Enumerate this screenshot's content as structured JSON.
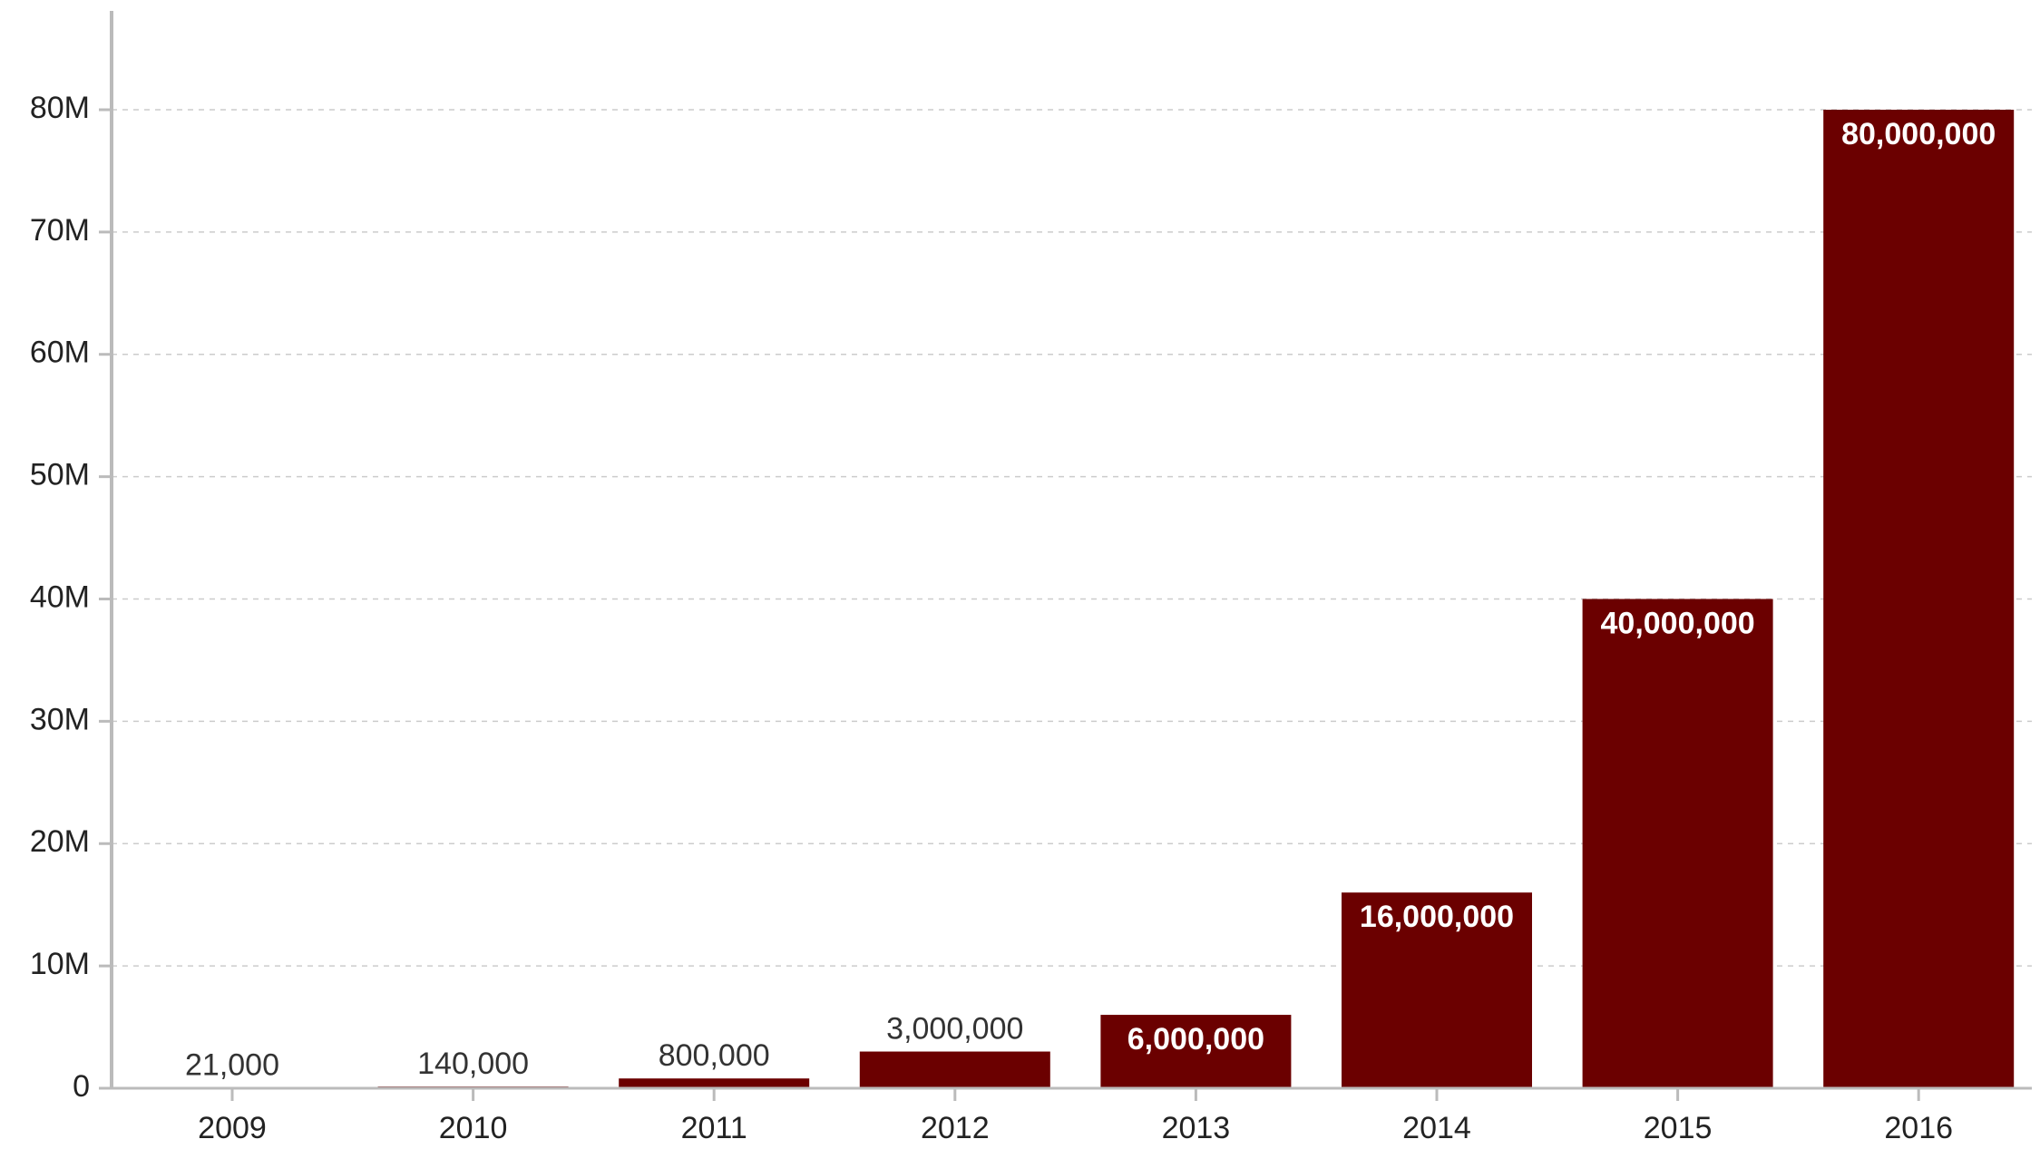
{
  "chart_data": {
    "type": "bar",
    "title": "",
    "xlabel": "",
    "ylabel": "",
    "categories": [
      "2009",
      "2010",
      "2011",
      "2012",
      "2013",
      "2014",
      "2015",
      "2016"
    ],
    "values": [
      21000,
      140000,
      800000,
      3000000,
      6000000,
      16000000,
      40000000,
      80000000
    ],
    "value_labels": [
      "21,000",
      "140,000",
      "800,000",
      "3,000,000",
      "6,000,000",
      "16,000,000",
      "40,000,000",
      "80,000,000"
    ],
    "ylim": [
      0,
      88000000
    ],
    "y_ticks": [
      0,
      10000000,
      20000000,
      30000000,
      40000000,
      50000000,
      60000000,
      70000000,
      80000000
    ],
    "y_tick_labels": [
      "0",
      "10M",
      "20M",
      "30M",
      "40M",
      "50M",
      "60M",
      "70M",
      "80M"
    ],
    "grid": true,
    "legend": "none",
    "colors": {
      "bar": "#6b0000",
      "axis": "#bbbbbb",
      "grid": "#cccccc",
      "text": "#222222",
      "label_inside": "#ffffff",
      "label_outside": "#333333"
    }
  }
}
